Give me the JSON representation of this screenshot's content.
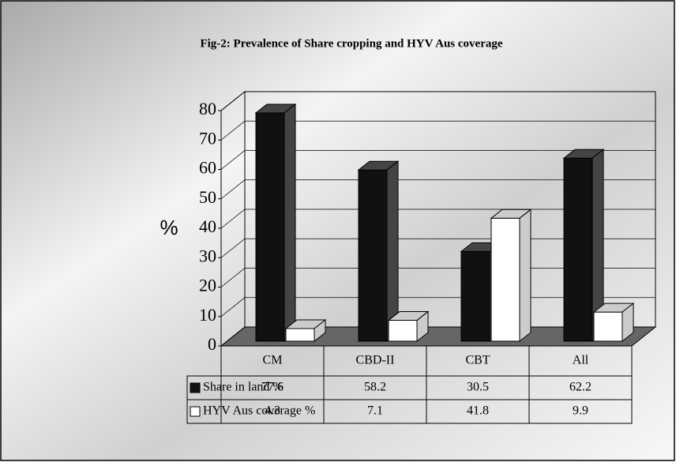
{
  "chart_data": {
    "type": "bar3d",
    "title": "Fig-2: Prevalence of Share cropping and HYV Aus coverage",
    "y_label": "%",
    "categories": [
      "CM",
      "CBD-II",
      "CBT",
      "All"
    ],
    "series": [
      {
        "name": "Share in land %",
        "color": "#111111",
        "values": [
          77.6,
          58.2,
          30.5,
          62.2
        ]
      },
      {
        "name": "HYV Aus coverage %",
        "color": "#ffffff",
        "values": [
          4.3,
          7.1,
          41.8,
          9.9
        ]
      }
    ],
    "ylim": [
      0,
      80
    ],
    "yticks": [
      0,
      10,
      20,
      30,
      40,
      50,
      60,
      70,
      80
    ],
    "grid": true
  }
}
